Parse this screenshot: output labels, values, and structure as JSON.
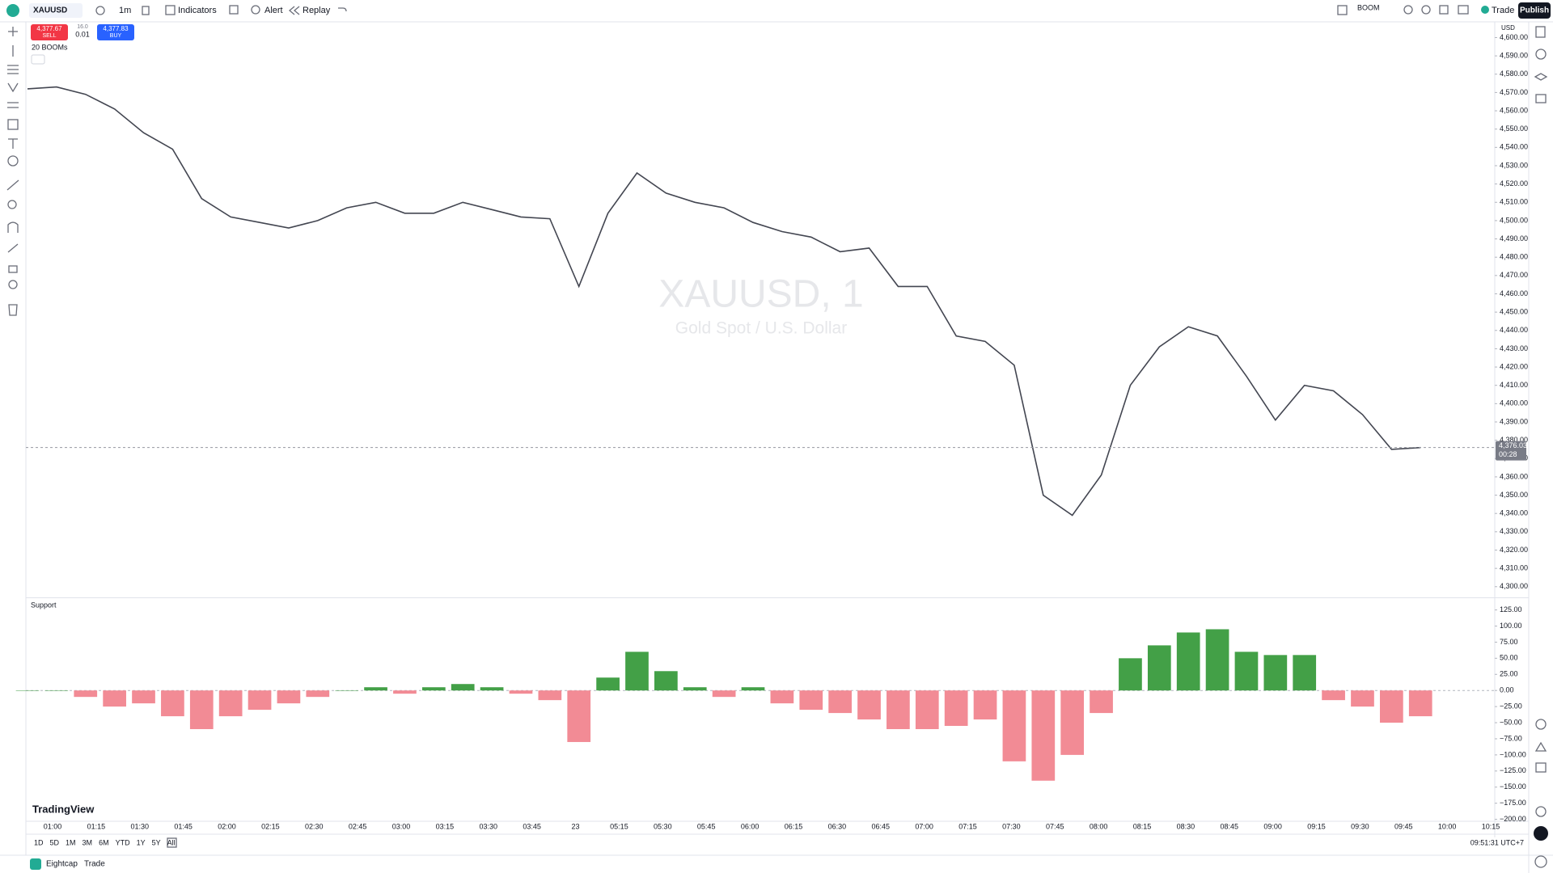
{
  "toolbar": {
    "symbol": "XAUUSD",
    "interval": "1m",
    "indicators": "Indicators",
    "alert": "Alert",
    "replay": "Replay",
    "boom": "BOOM",
    "trade": "Trade",
    "publish": "Publish"
  },
  "order_panel": {
    "sell_price": "4,377.67",
    "sell": "SELL",
    "spread": "16.0",
    "quantity": "0.01",
    "buy_price": "4,377.83",
    "buy": "BUY",
    "indicator_label": "20 BOOMs"
  },
  "watermark": {
    "title": "XAUUSD, 1",
    "subtitle": "Gold Spot / U.S. Dollar"
  },
  "currency": "USD",
  "chart_data": [
    {
      "type": "line",
      "color": "#434651",
      "values": [
        4572,
        4573,
        4569,
        4561,
        4548,
        4539,
        4512,
        4502,
        4499,
        4496,
        4500,
        4507,
        4510,
        4504,
        4504,
        4510,
        4506,
        4502,
        4501,
        4464,
        4504,
        4526,
        4515,
        4510,
        4507,
        4499,
        4494,
        4491,
        4483,
        4485,
        4464,
        4464,
        4437,
        4434,
        4421,
        4350,
        4339,
        4361,
        4410,
        4431,
        4442,
        4437,
        4415,
        4391,
        4410,
        4407,
        4394,
        4375,
        4376
      ],
      "ylim": [
        4294.6,
        4608.6
      ],
      "yticks": [
        {
          "value": 4600,
          "label": "4,600.00"
        },
        {
          "value": 4590,
          "label": "4,590.00"
        },
        {
          "value": 4580,
          "label": "4,580.00"
        },
        {
          "value": 4570,
          "label": "4,570.00"
        },
        {
          "value": 4560,
          "label": "4,560.00"
        },
        {
          "value": 4550,
          "label": "4,550.00"
        },
        {
          "value": 4540,
          "label": "4,540.00"
        },
        {
          "value": 4530,
          "label": "4,530.00"
        },
        {
          "value": 4520,
          "label": "4,520.00"
        },
        {
          "value": 4510,
          "label": "4,510.00"
        },
        {
          "value": 4500,
          "label": "4,500.00"
        },
        {
          "value": 4490,
          "label": "4,490.00"
        },
        {
          "value": 4480,
          "label": "4,480.00"
        },
        {
          "value": 4470,
          "label": "4,470.00"
        },
        {
          "value": 4460,
          "label": "4,460.00"
        },
        {
          "value": 4450,
          "label": "4,450.00"
        },
        {
          "value": 4440,
          "label": "4,440.00"
        },
        {
          "value": 4430,
          "label": "4,430.00"
        },
        {
          "value": 4420,
          "label": "4,420.00"
        },
        {
          "value": 4410,
          "label": "4,410.00"
        },
        {
          "value": 4400,
          "label": "4,400.00"
        },
        {
          "value": 4390,
          "label": "4,390.00"
        },
        {
          "value": 4380,
          "label": "4,380.00"
        },
        {
          "value": 4370,
          "label": "4,370.00"
        },
        {
          "value": 4360,
          "label": "4,360.00"
        },
        {
          "value": 4350,
          "label": "4,350.00"
        },
        {
          "value": 4340,
          "label": "4,340.00"
        },
        {
          "value": 4330,
          "label": "4,330.00"
        },
        {
          "value": 4320,
          "label": "4,320.00"
        },
        {
          "value": 4310,
          "label": "4,310.00"
        },
        {
          "value": 4300,
          "label": "4,300.00"
        }
      ],
      "last_price": {
        "value": 4376.03,
        "label": "4,376.03"
      },
      "countdown": "00:28"
    },
    {
      "type": "bar",
      "title": "Support",
      "colors": {
        "up": "#43a047",
        "down": "#f28b95"
      },
      "values": [
        0,
        0,
        -10,
        -25,
        -20,
        -40,
        -60,
        -40,
        -30,
        -20,
        -10,
        0,
        5,
        -5,
        5,
        10,
        5,
        -5,
        -15,
        -80,
        20,
        60,
        30,
        5,
        -10,
        5,
        -20,
        -30,
        -35,
        -45,
        -60,
        -60,
        -55,
        -45,
        -110,
        -140,
        -100,
        -35,
        50,
        70,
        90,
        95,
        60,
        55,
        55,
        -15,
        -25,
        -50,
        -40
      ],
      "ylim": [
        -203,
        142
      ],
      "yticks": [
        {
          "value": 125,
          "label": "125.00"
        },
        {
          "value": 100,
          "label": "100.00"
        },
        {
          "value": 75,
          "label": "75.00"
        },
        {
          "value": 50,
          "label": "50.00"
        },
        {
          "value": 25,
          "label": "25.00"
        },
        {
          "value": 0,
          "label": "0.00"
        },
        {
          "value": -25,
          "label": "−25.00"
        },
        {
          "value": -50,
          "label": "−50.00"
        },
        {
          "value": -75,
          "label": "−75.00"
        },
        {
          "value": -100,
          "label": "−100.00"
        },
        {
          "value": -125,
          "label": "−125.00"
        },
        {
          "value": -150,
          "label": "−150.00"
        },
        {
          "value": -175,
          "label": "−175.00"
        },
        {
          "value": -200,
          "label": "−200.00"
        }
      ]
    }
  ],
  "time_labels": [
    "01:00",
    "01:15",
    "01:30",
    "01:45",
    "02:00",
    "02:15",
    "02:30",
    "02:45",
    "03:00",
    "03:15",
    "03:30",
    "03:45",
    "23",
    "05:15",
    "05:30",
    "05:45",
    "06:00",
    "06:15",
    "06:30",
    "06:45",
    "07:00",
    "07:15",
    "07:30",
    "07:45",
    "08:00",
    "08:15",
    "08:30",
    "08:45",
    "09:00",
    "09:15",
    "09:30",
    "09:45",
    "10:00",
    "10:15"
  ],
  "ranges": [
    "1D",
    "5D",
    "1M",
    "3M",
    "6M",
    "YTD",
    "1Y",
    "5Y",
    "All"
  ],
  "clock": "09:51:31 UTC+7",
  "logo": "TradingView",
  "footer": {
    "broker": "Eightcap",
    "trade": "Trade"
  }
}
